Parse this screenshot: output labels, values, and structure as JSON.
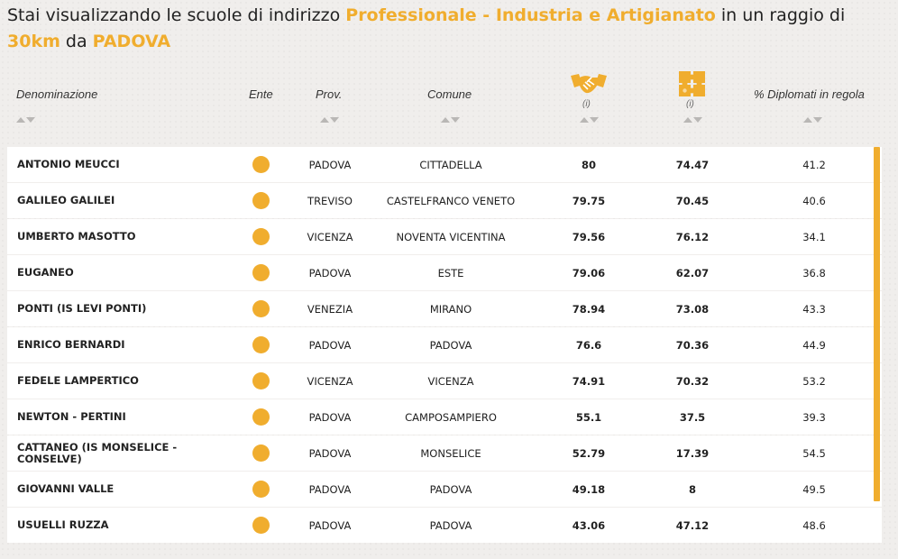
{
  "headline": {
    "p1": "Stai visualizzando le scuole di indirizzo ",
    "indirizzo": "Professionale - Industria e Artigianato",
    "p2": " in un raggio di ",
    "raggio": "30km",
    "p3": " da ",
    "citta": "PADOVA"
  },
  "colors": {
    "accent": "#f0ad2e",
    "row_bg": "#ffffff",
    "page_bg": "#f0eeec"
  },
  "columns": {
    "denominazione": "Denominazione",
    "ente": "Ente",
    "prov": "Prov.",
    "comune": "Comune",
    "col5_icon": "handshake-icon",
    "col5_info": "(i)",
    "col6_icon": "puzzle-icon",
    "col6_info": "(i)",
    "diplomati": "% Diplomati in regola"
  },
  "rows": [
    {
      "name": "ANTONIO MEUCCI",
      "prov": "PADOVA",
      "comune": "CITTADELLA",
      "v1": "80",
      "v2": "74.47",
      "pct": "41.2"
    },
    {
      "name": "GALILEO GALILEI",
      "prov": "TREVISO",
      "comune": "CASTELFRANCO VENETO",
      "v1": "79.75",
      "v2": "70.45",
      "pct": "40.6"
    },
    {
      "name": "UMBERTO MASOTTO",
      "prov": "VICENZA",
      "comune": "NOVENTA VICENTINA",
      "v1": "79.56",
      "v2": "76.12",
      "pct": "34.1"
    },
    {
      "name": "EUGANEO",
      "prov": "PADOVA",
      "comune": "ESTE",
      "v1": "79.06",
      "v2": "62.07",
      "pct": "36.8"
    },
    {
      "name": "PONTI (IS LEVI PONTI)",
      "prov": "VENEZIA",
      "comune": "MIRANO",
      "v1": "78.94",
      "v2": "73.08",
      "pct": "43.3"
    },
    {
      "name": "ENRICO BERNARDI",
      "prov": "PADOVA",
      "comune": "PADOVA",
      "v1": "76.6",
      "v2": "70.36",
      "pct": "44.9"
    },
    {
      "name": "FEDELE LAMPERTICO",
      "prov": "VICENZA",
      "comune": "VICENZA",
      "v1": "74.91",
      "v2": "70.32",
      "pct": "53.2"
    },
    {
      "name": "NEWTON - PERTINI",
      "prov": "PADOVA",
      "comune": "CAMPOSAMPIERO",
      "v1": "55.1",
      "v2": "37.5",
      "pct": "39.3"
    },
    {
      "name": "CATTANEO (IS MONSELICE - CONSELVE)",
      "prov": "PADOVA",
      "comune": "MONSELICE",
      "v1": "52.79",
      "v2": "17.39",
      "pct": "54.5"
    },
    {
      "name": "GIOVANNI VALLE",
      "prov": "PADOVA",
      "comune": "PADOVA",
      "v1": "49.18",
      "v2": "8",
      "pct": "49.5"
    },
    {
      "name": "USUELLI RUZZA",
      "prov": "PADOVA",
      "comune": "PADOVA",
      "v1": "43.06",
      "v2": "47.12",
      "pct": "48.6"
    }
  ]
}
